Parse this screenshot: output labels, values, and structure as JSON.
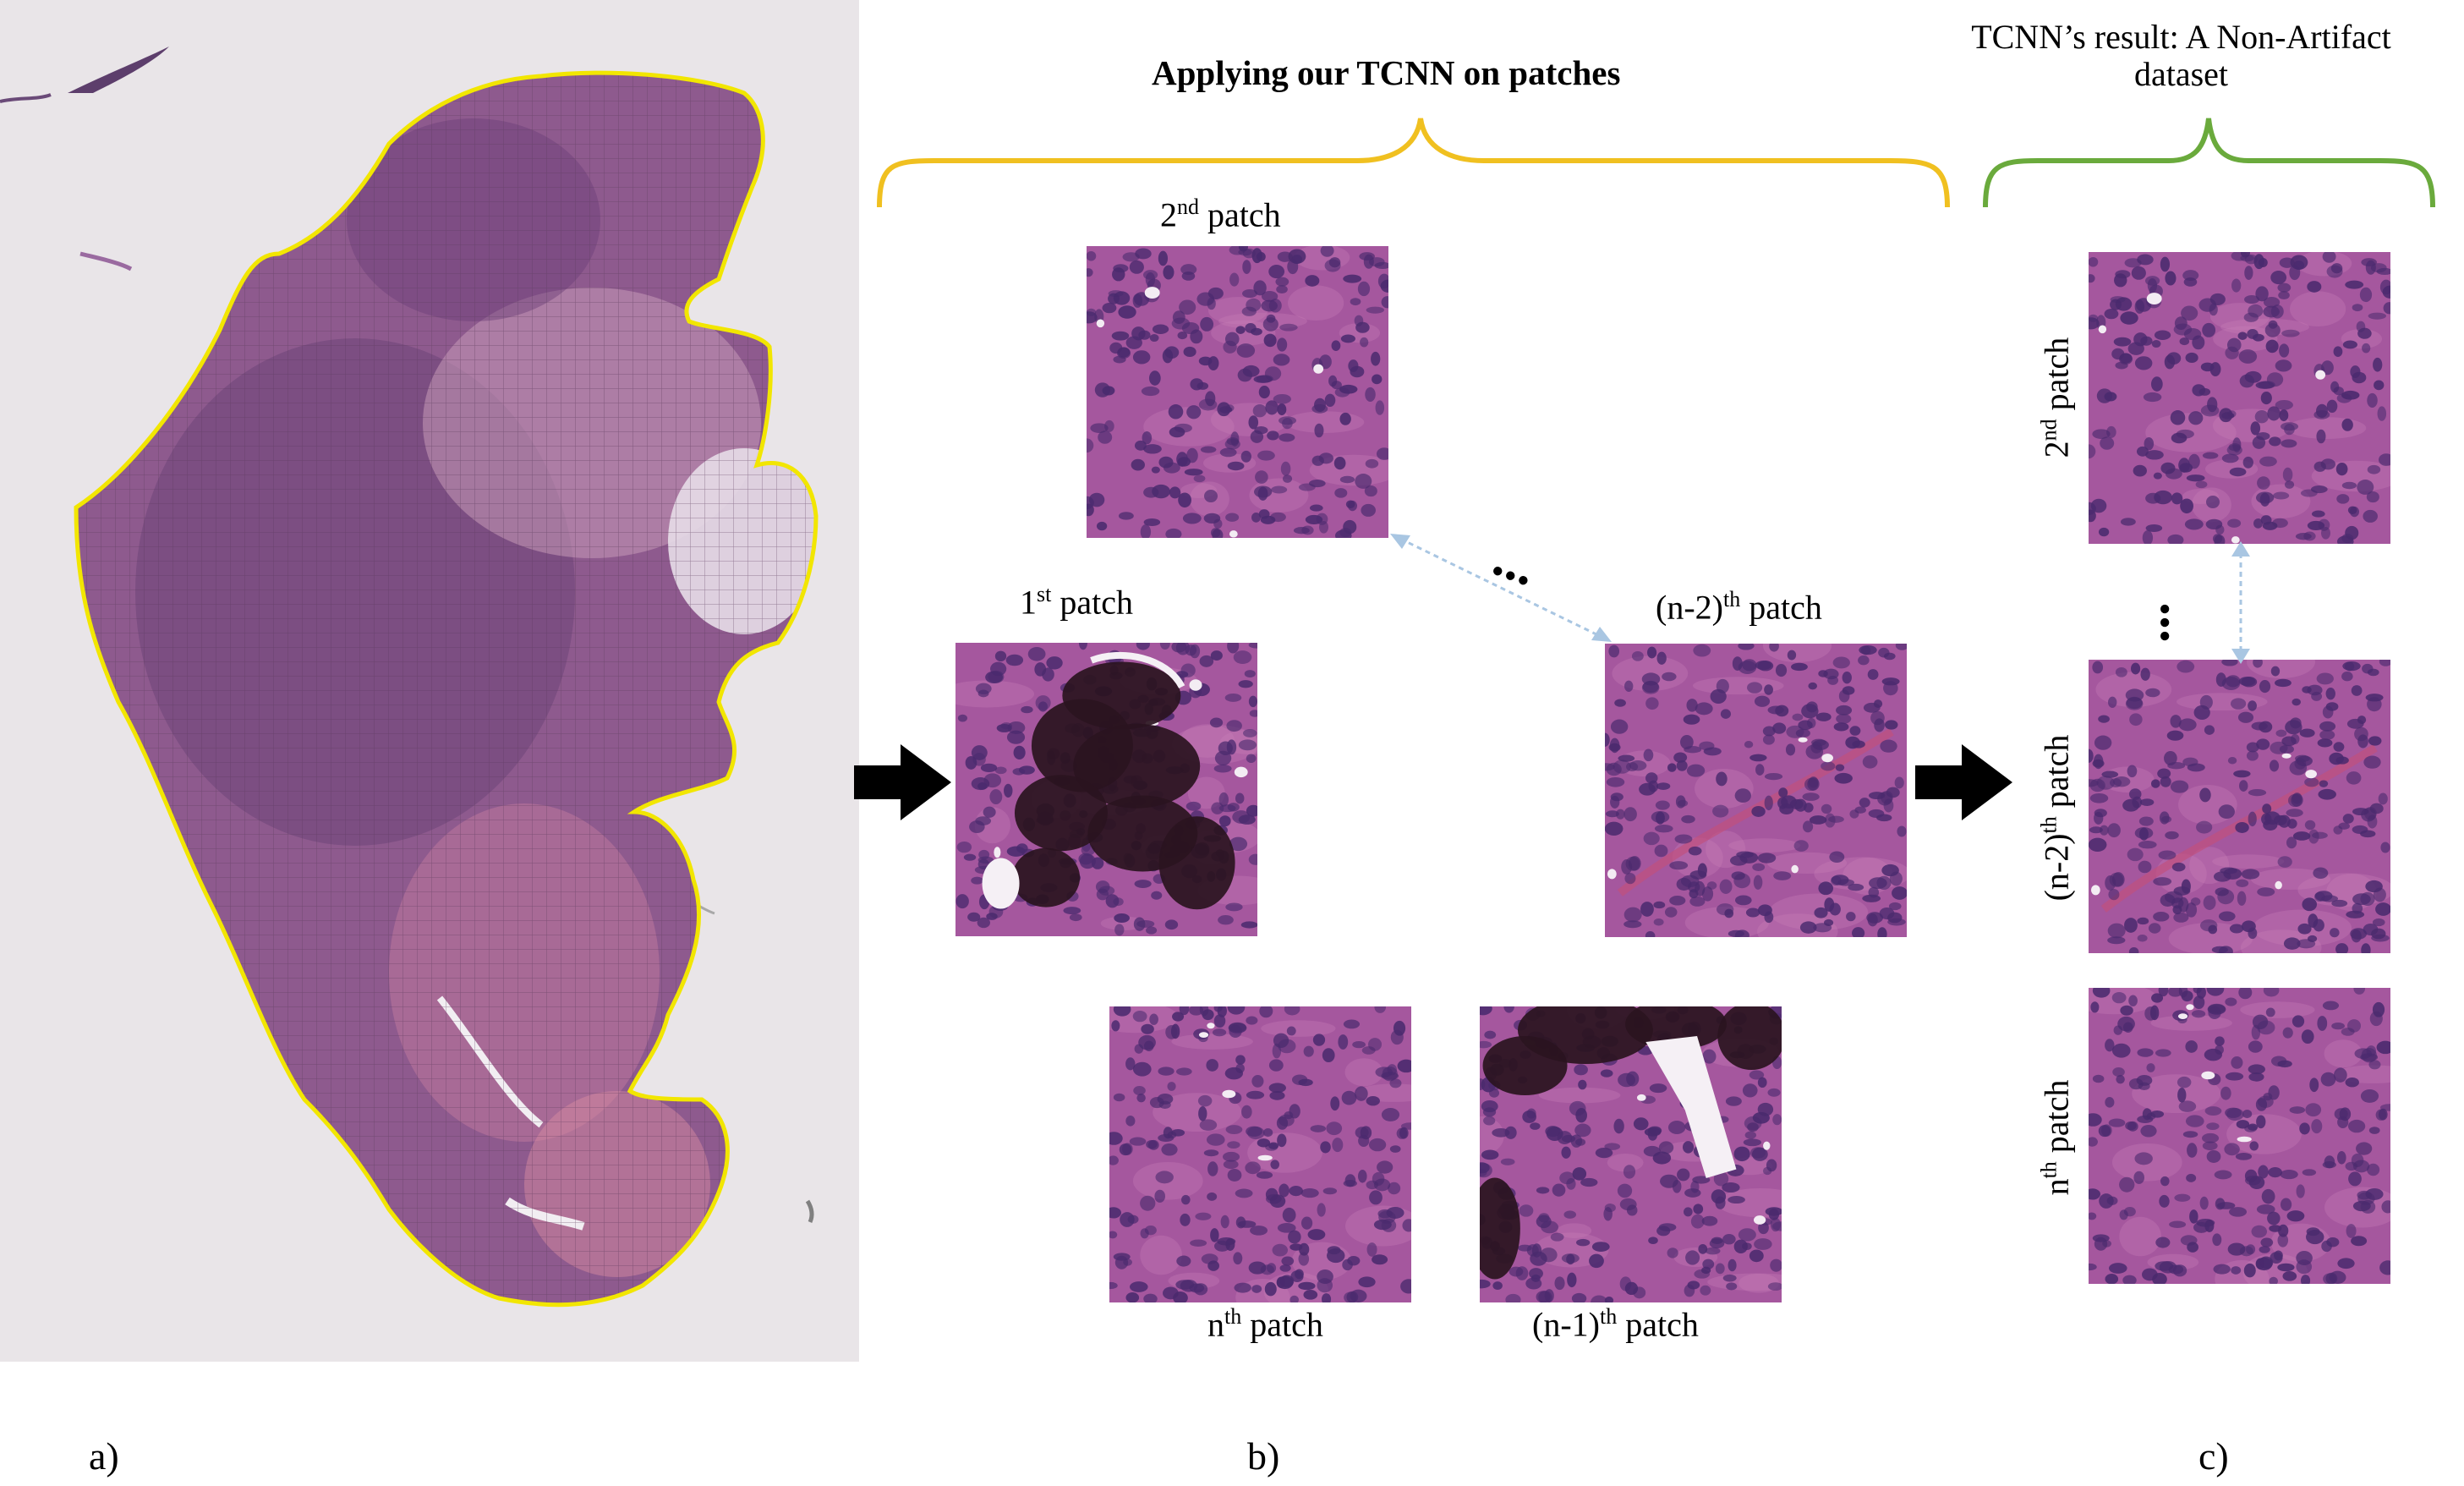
{
  "panel_a": {
    "letter": "a)"
  },
  "panel_b": {
    "letter": "b)",
    "title": "Applying our TCNN on patches",
    "patches": [
      {
        "id": "2nd",
        "base": "2",
        "sup": "nd",
        "suffix": " patch",
        "artifact": false
      },
      {
        "id": "1st",
        "base": "1",
        "sup": "st",
        "suffix": " patch",
        "artifact": true
      },
      {
        "id": "n-2",
        "base": "(n-2)",
        "sup": "th",
        "suffix": " patch",
        "artifact": false
      },
      {
        "id": "nth",
        "base": "n",
        "sup": "th",
        "suffix": " patch",
        "artifact": false
      },
      {
        "id": "n-1",
        "base": "(n-1)",
        "sup": "th",
        "suffix": " patch",
        "artifact": true
      }
    ],
    "ellipsis": "..."
  },
  "panel_c": {
    "letter": "c)",
    "title_line1": "TCNN’s result: A Non-Artifact",
    "title_line2": "dataset",
    "patches": [
      {
        "id": "2nd",
        "base": "2",
        "sup": "nd",
        "suffix": " patch"
      },
      {
        "id": "n-2",
        "base": "(n-2)",
        "sup": "th",
        "suffix": " patch"
      },
      {
        "id": "nth",
        "base": "n",
        "sup": "th",
        "suffix": " patch"
      }
    ],
    "ellipsis": "..."
  },
  "colors": {
    "tissue_outline": "#f2e600",
    "brace_b": "#f0c020",
    "brace_c": "#6aaa3c",
    "tissue": "#8e5a8e",
    "patch_bg": "#a5579e",
    "nucleus": "#4a2a6e",
    "artifact": "#2a1420",
    "dashed_arrow": "#a9c6e2"
  }
}
